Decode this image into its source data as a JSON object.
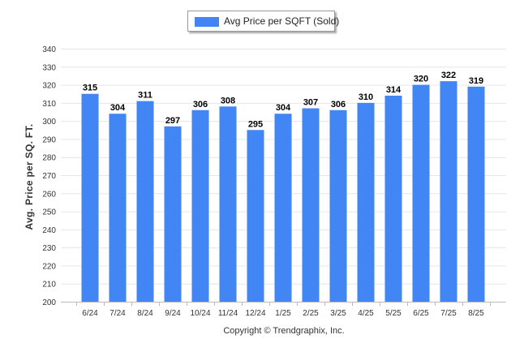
{
  "chart_data": {
    "type": "bar",
    "title": "",
    "xlabel": "",
    "ylabel": "Avg. Price per SQ. FT.",
    "categories": [
      "6/24",
      "7/24",
      "8/24",
      "9/24",
      "10/24",
      "11/24",
      "12/24",
      "1/25",
      "2/25",
      "3/25",
      "4/25",
      "5/25",
      "6/25",
      "7/25",
      "8/25"
    ],
    "series": [
      {
        "name": "Avg Price per SQFT (Sold)",
        "values": [
          315,
          304,
          311,
          297,
          306,
          308,
          295,
          304,
          307,
          306,
          310,
          314,
          320,
          322,
          319
        ]
      }
    ],
    "data_labels": [
      "315",
      "304",
      "311",
      "297",
      "306",
      "308",
      "295",
      "304",
      "307",
      "306",
      "310",
      "314",
      "320",
      "322",
      "319"
    ],
    "ylim": [
      200,
      340
    ],
    "yticks": [
      "200",
      "210",
      "220",
      "230",
      "240",
      "250",
      "260",
      "270",
      "280",
      "290",
      "300",
      "310",
      "320",
      "330",
      "340"
    ],
    "grid": true,
    "legend_position": "top-center",
    "colors": {
      "bar": "#4285f4",
      "grid": "#e6e6e6",
      "axis": "#666666",
      "text": "#333333"
    }
  },
  "footer": {
    "copyright": "Copyright © Trendgraphix, Inc."
  }
}
